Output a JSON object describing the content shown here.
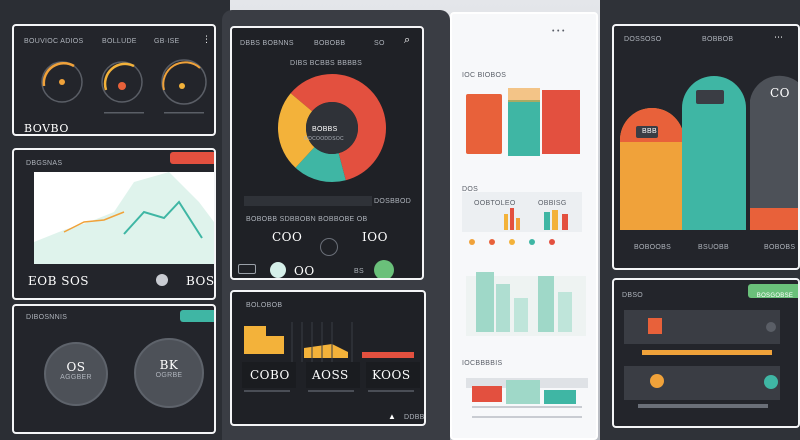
{
  "colors": {
    "orange": "#f0a23a",
    "deep_orange": "#e8613a",
    "red": "#e3503f",
    "teal": "#3fb6a4",
    "mint": "#9fd8c8",
    "yellow": "#f3b23a",
    "green": "#6ac07a",
    "navy": "#23252b"
  },
  "p1": {
    "title": "BOUVIOC ADIOS",
    "title_right": "BOLLUDE",
    "corner": "GB·ISE",
    "footer": "BOVBO"
  },
  "p2": {
    "title": "DBGSNAS",
    "left_value": "EOB SOS",
    "right_value": "BOS"
  },
  "p3": {
    "title": "DIBOSNNIS",
    "left_value": "OS",
    "left_sub": "AGGBER",
    "right_value": "BK",
    "right_sub": "OGRBE"
  },
  "p4": {
    "title": "DBBS BOBNNS",
    "title_right": "BOBOBB",
    "corner": "SO",
    "subtitle": "DIBS BCBBS BBBBS",
    "donut_label": "BOBBS",
    "donut_sub": "ODCOODDSOC",
    "caption_bar": "BOBOBB SDBBOBN BOBBOBE OB",
    "caption_right": "DOSBBOD",
    "stat_left": "COO",
    "stat_right": "IOO",
    "stat_mid": "OO",
    "stat_corner": "BS"
  },
  "p5": {
    "title": "BOLOBOB",
    "value_a": "COBO",
    "value_b": "AOSS",
    "value_c": "KOOS",
    "corner": "DDBB"
  },
  "p6": {
    "title": "IOC BIOBOS",
    "subtitle": "DOS",
    "chart_title": "OOBTOLEO",
    "chart_title_2": "OBBISG",
    "section_label": "IOCBBBBIS"
  },
  "p7": {
    "title": "DOSSOSO",
    "title_right": "BOBBOB",
    "bar_label_1": "BBB",
    "bar_label_2": "CO",
    "foot_1": "BOBOOBS",
    "foot_2": "BSUOBB",
    "foot_3": "BOBOBS"
  },
  "p8": {
    "title": "DBSO",
    "button": "BOSGOBSE"
  }
}
